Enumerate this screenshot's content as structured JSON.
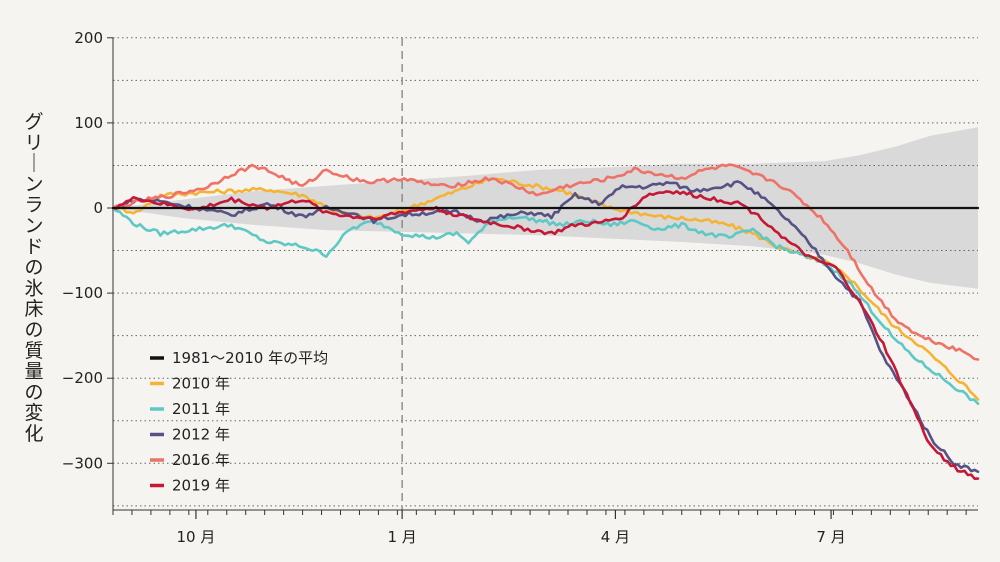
{
  "chart_data": {
    "type": "line",
    "ylabel": "グリーンランドの氷床の質量の変化",
    "xlabel": "",
    "ylim": [
      -350,
      200
    ],
    "xlim": [
      0,
      365
    ],
    "y_ticks": [
      {
        "value": 200,
        "label": "200"
      },
      {
        "value": 100,
        "label": "100"
      },
      {
        "value": 0,
        "label": "0"
      },
      {
        "value": -100,
        "label": "−100"
      },
      {
        "value": -200,
        "label": "−200"
      },
      {
        "value": -300,
        "label": "−300"
      }
    ],
    "x_ticks": [
      {
        "day": 35,
        "label": "10 月"
      },
      {
        "day": 122,
        "label": "1 月"
      },
      {
        "day": 212,
        "label": "4 月"
      },
      {
        "day": 303,
        "label": "7 月"
      }
    ],
    "grid": "dotted horizontal every 50",
    "reference_line_day": 122,
    "range_band": {
      "days": [
        0,
        30,
        60,
        90,
        120,
        150,
        180,
        210,
        240,
        270,
        300,
        315,
        330,
        345,
        365
      ],
      "upper": [
        0,
        10,
        20,
        26,
        32,
        38,
        45,
        48,
        52,
        52,
        55,
        62,
        72,
        85,
        95
      ],
      "lower": [
        0,
        -12,
        -20,
        -26,
        -28,
        -30,
        -32,
        -36,
        -40,
        -45,
        -55,
        -65,
        -78,
        -88,
        -95
      ]
    },
    "legend_position": "bottom-left",
    "series": [
      {
        "name": "1981〜2010 年の平均",
        "color": "#111111",
        "x": [
          0,
          365
        ],
        "y": [
          0,
          0
        ]
      },
      {
        "name": "2010 年",
        "color": "#f5b335",
        "x": [
          0,
          10,
          20,
          35,
          50,
          65,
          80,
          95,
          110,
          120,
          130,
          140,
          150,
          160,
          170,
          180,
          190,
          200,
          210,
          220,
          230,
          240,
          250,
          260,
          270,
          280,
          290,
          300,
          310,
          320,
          330,
          340,
          350,
          360,
          365
        ],
        "y": [
          0,
          -5,
          15,
          18,
          20,
          22,
          15,
          -5,
          -12,
          -5,
          5,
          15,
          25,
          35,
          30,
          25,
          20,
          10,
          0,
          -5,
          -10,
          -12,
          -15,
          -20,
          -30,
          -45,
          -55,
          -62,
          -80,
          -110,
          -140,
          -160,
          -185,
          -210,
          -225
        ]
      },
      {
        "name": "2011 年",
        "color": "#5ec8c5",
        "x": [
          0,
          10,
          20,
          35,
          50,
          65,
          80,
          90,
          100,
          110,
          122,
          135,
          145,
          150,
          160,
          170,
          180,
          190,
          200,
          210,
          220,
          230,
          240,
          250,
          260,
          270,
          280,
          290,
          300,
          310,
          320,
          330,
          340,
          350,
          360,
          365
        ],
        "y": [
          0,
          -20,
          -30,
          -25,
          -20,
          -40,
          -45,
          -55,
          -25,
          -15,
          -30,
          -35,
          -30,
          -40,
          -15,
          -10,
          -15,
          -20,
          -15,
          -20,
          -15,
          -25,
          -20,
          -30,
          -35,
          -25,
          -45,
          -55,
          -65,
          -85,
          -120,
          -155,
          -180,
          -200,
          -220,
          -230
        ]
      },
      {
        "name": "2012 年",
        "color": "#565285",
        "x": [
          0,
          10,
          20,
          35,
          50,
          65,
          80,
          90,
          100,
          110,
          122,
          135,
          145,
          155,
          165,
          175,
          185,
          195,
          205,
          215,
          225,
          235,
          245,
          255,
          265,
          275,
          285,
          295,
          305,
          315,
          325,
          335,
          345,
          355,
          365
        ],
        "y": [
          0,
          10,
          8,
          0,
          -8,
          5,
          -10,
          0,
          -5,
          -15,
          -8,
          -5,
          -5,
          -15,
          -10,
          -5,
          -10,
          15,
          5,
          25,
          25,
          30,
          20,
          25,
          30,
          10,
          -15,
          -45,
          -80,
          -110,
          -175,
          -220,
          -270,
          -300,
          -310
        ]
      },
      {
        "name": "2016 年",
        "color": "#ee7268",
        "x": [
          0,
          15,
          25,
          40,
          50,
          60,
          70,
          80,
          90,
          100,
          110,
          120,
          130,
          140,
          150,
          160,
          170,
          180,
          190,
          200,
          210,
          220,
          230,
          240,
          250,
          260,
          270,
          280,
          290,
          300,
          310,
          320,
          330,
          340,
          350,
          360,
          365
        ],
        "y": [
          0,
          10,
          15,
          25,
          40,
          50,
          38,
          25,
          45,
          35,
          30,
          35,
          30,
          25,
          30,
          35,
          25,
          15,
          25,
          30,
          35,
          45,
          40,
          35,
          45,
          50,
          40,
          30,
          10,
          -15,
          -50,
          -95,
          -130,
          -150,
          -160,
          -170,
          -178
        ]
      },
      {
        "name": "2019 年",
        "color": "#c51736",
        "x": [
          0,
          10,
          20,
          35,
          50,
          65,
          80,
          90,
          100,
          110,
          122,
          135,
          145,
          155,
          165,
          175,
          185,
          195,
          205,
          215,
          225,
          235,
          245,
          255,
          265,
          275,
          285,
          295,
          305,
          315,
          325,
          335,
          345,
          355,
          365
        ],
        "y": [
          0,
          12,
          5,
          -2,
          10,
          0,
          10,
          -5,
          -10,
          -12,
          -5,
          0,
          -8,
          -15,
          -20,
          -25,
          -30,
          -20,
          -18,
          -10,
          15,
          20,
          15,
          10,
          5,
          -15,
          -40,
          -60,
          -70,
          -110,
          -160,
          -220,
          -280,
          -305,
          -318
        ]
      }
    ]
  }
}
